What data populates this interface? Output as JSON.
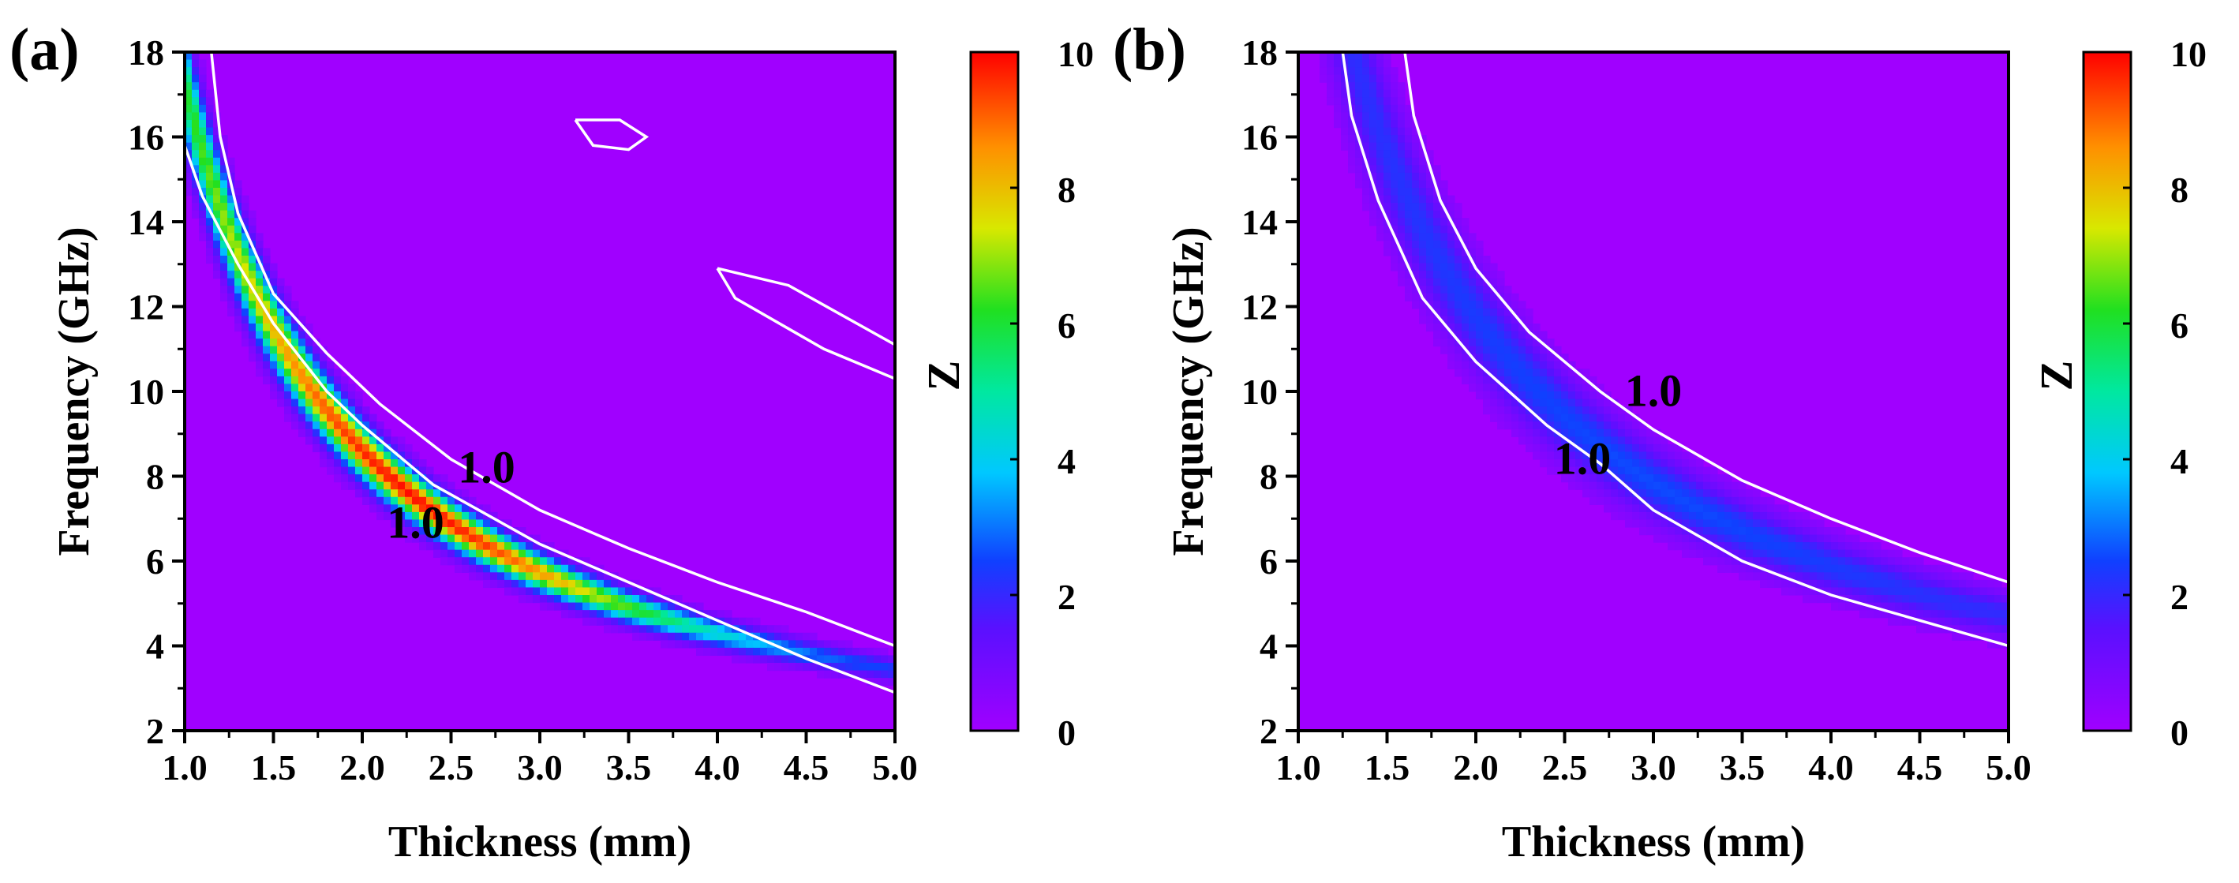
{
  "chart_data": [
    {
      "type": "heatmap",
      "panel_label": "(a)",
      "xlabel": "Thickness (mm)",
      "ylabel": "Frequency (GHz)",
      "xlim": [
        1.0,
        5.0
      ],
      "ylim": [
        2,
        18
      ],
      "xticks": [
        "1.0",
        "1.5",
        "2.0",
        "2.5",
        "3.0",
        "3.5",
        "4.0",
        "4.5",
        "5.0"
      ],
      "yticks": [
        "2",
        "4",
        "6",
        "8",
        "10",
        "12",
        "14",
        "16",
        "18"
      ],
      "colorbar": {
        "label": "Z",
        "range": [
          0,
          10
        ],
        "ticks": [
          "0",
          "2",
          "4",
          "6",
          "8",
          "10"
        ],
        "colormap": "rainbow (purple-blue-cyan-green-yellow-red)"
      },
      "ridge": {
        "description": "peak Z follows f ≈ 17.2/t GHz",
        "k_ghz_mm": 17.2,
        "peak_z": 9.6,
        "peak_at": [
          2.3,
          7.6
        ]
      },
      "contour_level": "1.0",
      "contour_labels": [
        {
          "text": "1.0",
          "x": 2.7,
          "y": 8.1
        },
        {
          "text": "1.0",
          "x": 2.3,
          "y": 6.8
        }
      ],
      "contours": [
        {
          "name": "upper",
          "points": [
            [
              1.15,
              18.0
            ],
            [
              1.2,
              16.0
            ],
            [
              1.3,
              14.2
            ],
            [
              1.5,
              12.3
            ],
            [
              1.8,
              10.9
            ],
            [
              2.1,
              9.7
            ],
            [
              2.5,
              8.4
            ],
            [
              3.0,
              7.2
            ],
            [
              3.5,
              6.3
            ],
            [
              4.0,
              5.5
            ],
            [
              4.5,
              4.8
            ],
            [
              5.0,
              4.0
            ]
          ]
        },
        {
          "name": "lower",
          "points": [
            [
              1.0,
              15.8
            ],
            [
              1.1,
              14.6
            ],
            [
              1.3,
              13.0
            ],
            [
              1.5,
              11.6
            ],
            [
              1.8,
              10.0
            ],
            [
              2.0,
              9.2
            ],
            [
              2.4,
              7.8
            ],
            [
              3.0,
              6.4
            ],
            [
              3.5,
              5.5
            ],
            [
              4.0,
              4.6
            ],
            [
              4.5,
              3.7
            ],
            [
              5.0,
              2.9
            ]
          ]
        },
        {
          "name": "island-1",
          "points": [
            [
              3.2,
              16.4
            ],
            [
              3.45,
              16.4
            ],
            [
              3.6,
              16.0
            ],
            [
              3.5,
              15.7
            ],
            [
              3.3,
              15.8
            ],
            [
              3.2,
              16.4
            ]
          ]
        },
        {
          "name": "island-2",
          "points": [
            [
              4.0,
              12.9
            ],
            [
              4.4,
              12.5
            ],
            [
              5.0,
              11.1
            ],
            [
              5.0,
              10.3
            ],
            [
              4.6,
              11.0
            ],
            [
              4.1,
              12.2
            ],
            [
              4.0,
              12.9
            ]
          ]
        }
      ]
    },
    {
      "type": "heatmap",
      "panel_label": "(b)",
      "xlabel": "Thickness (mm)",
      "ylabel": "Frequency (GHz)",
      "xlim": [
        1.0,
        5.0
      ],
      "ylim": [
        2,
        18
      ],
      "xticks": [
        "1.0",
        "1.5",
        "2.0",
        "2.5",
        "3.0",
        "3.5",
        "4.0",
        "4.5",
        "5.0"
      ],
      "yticks": [
        "2",
        "4",
        "6",
        "8",
        "10",
        "12",
        "14",
        "16",
        "18"
      ],
      "colorbar": {
        "label": "Z",
        "range": [
          0,
          10
        ],
        "ticks": [
          "0",
          "2",
          "4",
          "6",
          "8",
          "10"
        ],
        "colormap": "rainbow (purple-blue-cyan-green-yellow-red)"
      },
      "ridge": {
        "description": "peak Z follows f ≈ 23.5/t GHz",
        "k_ghz_mm": 23.5,
        "peak_z": 2.3,
        "peak_at": [
          3.0,
          7.7
        ]
      },
      "contour_level": "1.0",
      "contour_labels": [
        {
          "text": "1.0",
          "x": 3.0,
          "y": 9.9
        },
        {
          "text": "1.0",
          "x": 2.6,
          "y": 8.3
        }
      ],
      "contours": [
        {
          "name": "upper",
          "points": [
            [
              1.6,
              18.0
            ],
            [
              1.65,
              16.5
            ],
            [
              1.8,
              14.5
            ],
            [
              2.0,
              12.9
            ],
            [
              2.3,
              11.4
            ],
            [
              2.7,
              10.0
            ],
            [
              3.0,
              9.1
            ],
            [
              3.5,
              7.9
            ],
            [
              4.0,
              7.0
            ],
            [
              4.5,
              6.2
            ],
            [
              5.0,
              5.5
            ]
          ]
        },
        {
          "name": "lower",
          "points": [
            [
              1.25,
              18.0
            ],
            [
              1.3,
              16.5
            ],
            [
              1.45,
              14.5
            ],
            [
              1.7,
              12.2
            ],
            [
              2.0,
              10.7
            ],
            [
              2.4,
              9.2
            ],
            [
              2.7,
              8.3
            ],
            [
              3.0,
              7.2
            ],
            [
              3.5,
              6.0
            ],
            [
              4.0,
              5.2
            ],
            [
              4.5,
              4.6
            ],
            [
              5.0,
              4.0
            ]
          ]
        }
      ]
    }
  ]
}
